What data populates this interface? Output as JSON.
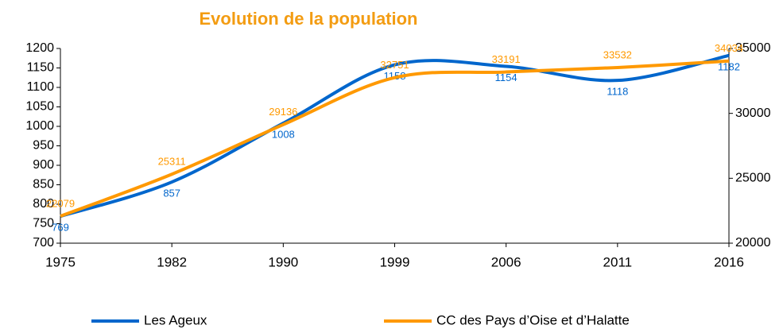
{
  "chart_data": {
    "type": "line",
    "title": "Evolution de la population",
    "categories": [
      "1975",
      "1982",
      "1990",
      "1999",
      "2006",
      "2011",
      "2016"
    ],
    "series": [
      {
        "name": "Les Ageux",
        "color": "#0066cc",
        "values": [
          769,
          857,
          1008,
          1158,
          1154,
          1118,
          1182
        ]
      },
      {
        "name": "CC des Pays d’Oise et d’Halatte",
        "color": "#ff9900",
        "axis": "y2",
        "values": [
          22079,
          25311,
          29136,
          32751,
          33191,
          33532,
          34034
        ]
      }
    ],
    "ylim": [
      700,
      1200
    ],
    "yticks": [
      700,
      750,
      800,
      850,
      900,
      950,
      1000,
      1050,
      1100,
      1150,
      1200
    ],
    "y2lim": [
      20000,
      35000
    ],
    "y2ticks": [
      20000,
      25000,
      30000,
      35000
    ],
    "smooth": true,
    "grid": false,
    "legend": "bottom"
  }
}
